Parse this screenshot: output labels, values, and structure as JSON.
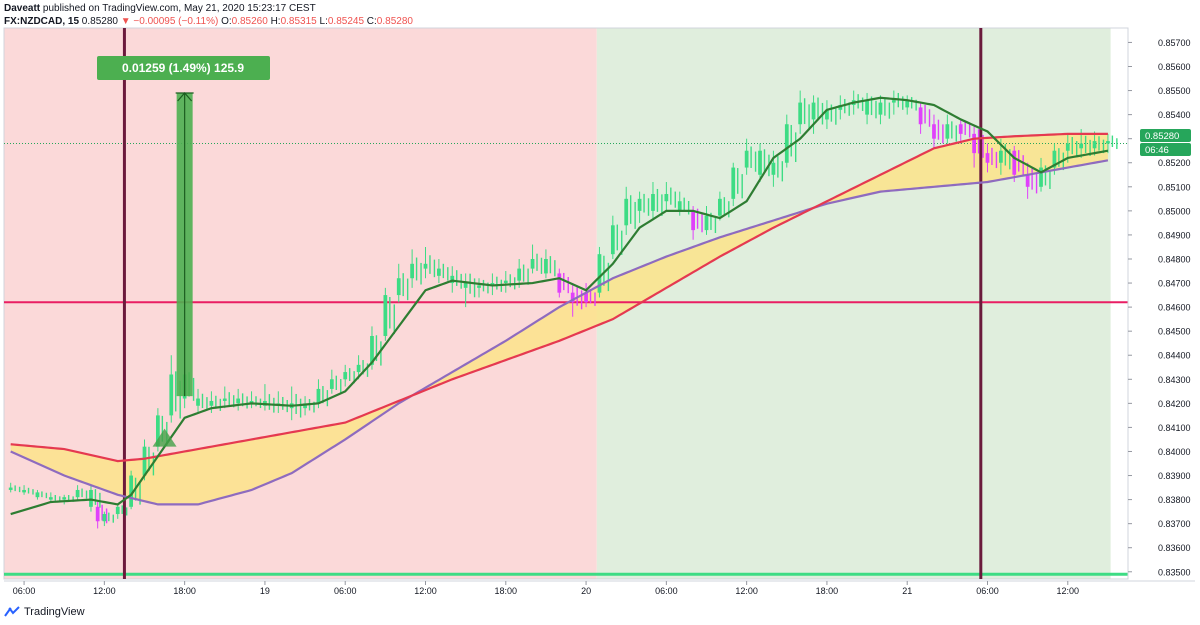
{
  "header": {
    "author": "Daveatt",
    "published": "published on TradingView.com, May 21, 2020 15:23:17 CEST",
    "symbol": "FX:NZDCAD, 15",
    "last": "0.85280",
    "change": "▼ −0.00095 (−0.11%)",
    "o_label": "O:",
    "o": "0.85260",
    "h_label": "H:",
    "h": "0.85315",
    "l_label": "L:",
    "l": "0.85245",
    "c_label": "C:",
    "c": "0.85280"
  },
  "measure_label": "0.01259 (1.49%) 125.9",
  "price_tags": {
    "current": "0.85280",
    "countdown": "06:46"
  },
  "footer": {
    "brand": "TradingView"
  },
  "colors": {
    "bg_bear": "#fbd9d9",
    "bg_bull": "#e0eedd",
    "fast_ma": "#2e7d32",
    "slow_ma_red": "#e53950",
    "slow_ma_purple": "#8e6bbf",
    "fill": "#fbe38a",
    "hline": "#e91e63",
    "vline": "#6b1a3c",
    "candle_up": "#3ddc84",
    "candle_pink": "#e040fb",
    "measure": "#4caf50"
  },
  "chart_data": {
    "type": "candlestick",
    "symbol": "FX:NZDCAD",
    "interval": "15",
    "y_ticks": [
      "0.85700",
      "0.85600",
      "0.85500",
      "0.85400",
      "0.85300",
      "0.85200",
      "0.85100",
      "0.85000",
      "0.84900",
      "0.84800",
      "0.84700",
      "0.84600",
      "0.84500",
      "0.84400",
      "0.84300",
      "0.84200",
      "0.84100",
      "0.84000",
      "0.83900",
      "0.83800",
      "0.83700",
      "0.83600",
      "0.83500"
    ],
    "ylim": [
      0.8347,
      0.8576
    ],
    "x_ticks": [
      {
        "t": 0,
        "label": "06:00"
      },
      {
        "t": 6,
        "label": "12:00"
      },
      {
        "t": 12,
        "label": "18:00"
      },
      {
        "t": 18,
        "label": "19"
      },
      {
        "t": 24,
        "label": "06:00"
      },
      {
        "t": 30,
        "label": "12:00"
      },
      {
        "t": 36,
        "label": "18:00"
      },
      {
        "t": 42,
        "label": "20"
      },
      {
        "t": 48,
        "label": "06:00"
      },
      {
        "t": 54,
        "label": "12:00"
      },
      {
        "t": 60,
        "label": "18:00"
      },
      {
        "t": 66,
        "label": "21"
      },
      {
        "t": 72,
        "label": "06:00"
      },
      {
        "t": 78,
        "label": "12:00"
      }
    ],
    "xlim": [
      -1.5,
      82.5
    ],
    "horizontal_line": 0.8462,
    "bottom_line": 0.8349,
    "vertical_lines": [
      7.5,
      71.5
    ],
    "background_zones": [
      {
        "from": -1.5,
        "to": 42.8,
        "kind": "bear"
      },
      {
        "from": 42.8,
        "to": 81.2,
        "kind": "bull"
      }
    ],
    "measure": {
      "t": 12,
      "from": 0.8423,
      "to": 0.8549,
      "change": "0.01259 (1.49%) 125.9"
    },
    "signal_triangle": {
      "t": 10.5,
      "price": 0.8407
    },
    "fast_ma": [
      [
        -1,
        0.8374
      ],
      [
        2,
        0.8379
      ],
      [
        5,
        0.838
      ],
      [
        7,
        0.8378
      ],
      [
        8,
        0.8382
      ],
      [
        10,
        0.8398
      ],
      [
        12,
        0.8414
      ],
      [
        14,
        0.8418
      ],
      [
        17,
        0.842
      ],
      [
        20,
        0.8419
      ],
      [
        22,
        0.842
      ],
      [
        24,
        0.8425
      ],
      [
        26,
        0.8437
      ],
      [
        28,
        0.8452
      ],
      [
        30,
        0.8467
      ],
      [
        32,
        0.8471
      ],
      [
        35,
        0.8469
      ],
      [
        38,
        0.847
      ],
      [
        40,
        0.8472
      ],
      [
        42,
        0.8467
      ],
      [
        44,
        0.8478
      ],
      [
        46,
        0.8493
      ],
      [
        48,
        0.85
      ],
      [
        50,
        0.85
      ],
      [
        52,
        0.8497
      ],
      [
        54,
        0.8504
      ],
      [
        56,
        0.8522
      ],
      [
        58,
        0.853
      ],
      [
        60,
        0.8542
      ],
      [
        62,
        0.8545
      ],
      [
        64,
        0.8547
      ],
      [
        66,
        0.8546
      ],
      [
        68,
        0.8544
      ],
      [
        70,
        0.8538
      ],
      [
        72,
        0.8533
      ],
      [
        74,
        0.8522
      ],
      [
        76,
        0.8516
      ],
      [
        78,
        0.8522
      ],
      [
        80,
        0.8524
      ],
      [
        81,
        0.8525
      ]
    ],
    "slow_ma_red": [
      [
        -1,
        0.8403
      ],
      [
        3,
        0.8401
      ],
      [
        7,
        0.8396
      ],
      [
        9,
        0.8397
      ],
      [
        12,
        0.84
      ],
      [
        16,
        0.8404
      ],
      [
        20,
        0.8408
      ],
      [
        24,
        0.8412
      ],
      [
        28,
        0.8421
      ],
      [
        32,
        0.843
      ],
      [
        36,
        0.8438
      ],
      [
        40,
        0.8446
      ],
      [
        44,
        0.8455
      ],
      [
        48,
        0.8468
      ],
      [
        52,
        0.8481
      ],
      [
        56,
        0.8493
      ],
      [
        60,
        0.8504
      ],
      [
        64,
        0.8515
      ],
      [
        68,
        0.8526
      ],
      [
        71,
        0.853
      ],
      [
        74,
        0.8531
      ],
      [
        78,
        0.8532
      ],
      [
        81,
        0.8532
      ]
    ],
    "slow_ma_purple": [
      [
        -1,
        0.84
      ],
      [
        3,
        0.839
      ],
      [
        7,
        0.8382
      ],
      [
        10,
        0.8378
      ],
      [
        13,
        0.8378
      ],
      [
        17,
        0.8384
      ],
      [
        20,
        0.8391
      ],
      [
        24,
        0.8405
      ],
      [
        28,
        0.842
      ],
      [
        32,
        0.8433
      ],
      [
        36,
        0.8446
      ],
      [
        40,
        0.846
      ],
      [
        44,
        0.8472
      ],
      [
        48,
        0.8481
      ],
      [
        52,
        0.8489
      ],
      [
        56,
        0.8496
      ],
      [
        60,
        0.8503
      ],
      [
        64,
        0.8508
      ],
      [
        68,
        0.851
      ],
      [
        72,
        0.8512
      ],
      [
        76,
        0.8516
      ],
      [
        79,
        0.8519
      ],
      [
        81,
        0.8521
      ]
    ],
    "candles": [
      [
        -1.0,
        0.8385,
        0.8387,
        0.8383,
        0.8384
      ],
      [
        0.0,
        0.8384,
        0.8386,
        0.8382,
        0.8383
      ],
      [
        1.0,
        0.8383,
        0.8384,
        0.838,
        0.8381
      ],
      [
        2.0,
        0.8381,
        0.8383,
        0.8379,
        0.838
      ],
      [
        3.0,
        0.838,
        0.8382,
        0.8378,
        0.8381
      ],
      [
        4.0,
        0.8381,
        0.8386,
        0.838,
        0.8384
      ],
      [
        5.0,
        0.8384,
        0.8386,
        0.8375,
        0.8377
      ],
      [
        5.5,
        0.8377,
        0.8379,
        0.8368,
        0.8371,
        "p"
      ],
      [
        6.0,
        0.8371,
        0.8375,
        0.8369,
        0.8374
      ],
      [
        7.0,
        0.8374,
        0.8378,
        0.8372,
        0.8377
      ],
      [
        8.0,
        0.8377,
        0.8392,
        0.8376,
        0.839
      ],
      [
        9.0,
        0.839,
        0.8405,
        0.8388,
        0.8402
      ],
      [
        10.0,
        0.8402,
        0.8418,
        0.84,
        0.8415
      ],
      [
        11.0,
        0.8415,
        0.844,
        0.8412,
        0.8432
      ],
      [
        12.0,
        0.8432,
        0.8435,
        0.8418,
        0.8422
      ],
      [
        13.0,
        0.8422,
        0.8426,
        0.8416,
        0.8419
      ],
      [
        14.0,
        0.8419,
        0.8425,
        0.8416,
        0.8421
      ],
      [
        15.0,
        0.8421,
        0.8427,
        0.8418,
        0.8422
      ],
      [
        16.0,
        0.8422,
        0.8426,
        0.8417,
        0.842
      ],
      [
        17.0,
        0.842,
        0.8425,
        0.8418,
        0.8421
      ],
      [
        18.0,
        0.8421,
        0.8428,
        0.8417,
        0.8419
      ],
      [
        19.0,
        0.8419,
        0.8425,
        0.8416,
        0.842
      ],
      [
        20.0,
        0.842,
        0.8427,
        0.8413,
        0.8418
      ],
      [
        21.0,
        0.8418,
        0.8423,
        0.8415,
        0.842
      ],
      [
        22.0,
        0.842,
        0.843,
        0.8418,
        0.8426
      ],
      [
        23.0,
        0.8426,
        0.8434,
        0.8424,
        0.843
      ],
      [
        24.0,
        0.843,
        0.8436,
        0.8427,
        0.8433
      ],
      [
        25.0,
        0.8433,
        0.844,
        0.843,
        0.8436
      ],
      [
        26.0,
        0.8436,
        0.8452,
        0.8434,
        0.8448
      ],
      [
        27.0,
        0.8448,
        0.8468,
        0.8446,
        0.8465
      ],
      [
        28.0,
        0.8465,
        0.8478,
        0.8462,
        0.8472
      ],
      [
        29.0,
        0.8472,
        0.8484,
        0.8468,
        0.8478
      ],
      [
        30.0,
        0.8478,
        0.8485,
        0.8472,
        0.8476
      ],
      [
        31.0,
        0.8476,
        0.848,
        0.847,
        0.8473
      ],
      [
        32.0,
        0.8473,
        0.8477,
        0.8466,
        0.847
      ],
      [
        33.0,
        0.847,
        0.8474,
        0.846,
        0.8468
      ],
      [
        34.0,
        0.8468,
        0.8472,
        0.8464,
        0.8469
      ],
      [
        35.0,
        0.8469,
        0.8474,
        0.8465,
        0.847
      ],
      [
        36.0,
        0.847,
        0.8475,
        0.8466,
        0.8471
      ],
      [
        37.0,
        0.8471,
        0.848,
        0.8468,
        0.8476
      ],
      [
        38.0,
        0.8476,
        0.8486,
        0.8474,
        0.848
      ],
      [
        39.0,
        0.848,
        0.8484,
        0.8472,
        0.8474
      ],
      [
        40.0,
        0.8474,
        0.8476,
        0.8464,
        0.8466,
        "p"
      ],
      [
        41.0,
        0.8466,
        0.847,
        0.8456,
        0.8462,
        "p"
      ],
      [
        42.0,
        0.8462,
        0.847,
        0.846,
        0.8466,
        "p"
      ],
      [
        43.0,
        0.8466,
        0.8485,
        0.8464,
        0.8482
      ],
      [
        44.0,
        0.8482,
        0.8498,
        0.848,
        0.8494
      ],
      [
        45.0,
        0.8494,
        0.851,
        0.849,
        0.8505
      ],
      [
        46.0,
        0.8505,
        0.8508,
        0.8495,
        0.85
      ],
      [
        47.0,
        0.85,
        0.8512,
        0.8496,
        0.8507
      ],
      [
        48.0,
        0.8507,
        0.8512,
        0.85,
        0.8504
      ],
      [
        49.0,
        0.8504,
        0.8508,
        0.8498,
        0.85
      ],
      [
        50.0,
        0.85,
        0.8502,
        0.8488,
        0.8492,
        "p"
      ],
      [
        51.0,
        0.8492,
        0.8502,
        0.849,
        0.8498
      ],
      [
        52.0,
        0.8498,
        0.8508,
        0.8496,
        0.8505
      ],
      [
        53.0,
        0.8505,
        0.852,
        0.8502,
        0.8518
      ],
      [
        54.0,
        0.8518,
        0.853,
        0.8515,
        0.8525
      ],
      [
        55.0,
        0.8525,
        0.8528,
        0.8512,
        0.8515
      ],
      [
        56.0,
        0.8515,
        0.8525,
        0.851,
        0.852
      ],
      [
        57.0,
        0.852,
        0.854,
        0.8518,
        0.8536
      ],
      [
        58.0,
        0.8536,
        0.855,
        0.8532,
        0.8545
      ],
      [
        59.0,
        0.8545,
        0.8548,
        0.8532,
        0.8538
      ],
      [
        60.0,
        0.8538,
        0.8546,
        0.8534,
        0.8542
      ],
      [
        61.0,
        0.8542,
        0.8548,
        0.8538,
        0.8544
      ],
      [
        62.0,
        0.8544,
        0.855,
        0.854,
        0.8546
      ],
      [
        63.0,
        0.8546,
        0.8549,
        0.8536,
        0.854
      ],
      [
        64.0,
        0.854,
        0.8548,
        0.8536,
        0.8545
      ],
      [
        65.0,
        0.8545,
        0.855,
        0.854,
        0.8546
      ],
      [
        66.0,
        0.8546,
        0.8548,
        0.854,
        0.8543
      ],
      [
        67.0,
        0.8543,
        0.8545,
        0.8532,
        0.8536,
        "p"
      ],
      [
        68.0,
        0.8536,
        0.854,
        0.8526,
        0.853,
        "p"
      ],
      [
        69.0,
        0.853,
        0.854,
        0.8528,
        0.8536
      ],
      [
        70.0,
        0.8536,
        0.8538,
        0.8528,
        0.8532,
        "p"
      ],
      [
        71.0,
        0.8532,
        0.8535,
        0.8518,
        0.8524,
        "p"
      ],
      [
        72.0,
        0.8524,
        0.8528,
        0.8516,
        0.852,
        "p"
      ],
      [
        73.0,
        0.852,
        0.853,
        0.8515,
        0.8525
      ],
      [
        74.0,
        0.8525,
        0.8527,
        0.8512,
        0.8515,
        "p"
      ],
      [
        75.0,
        0.8515,
        0.852,
        0.8505,
        0.851,
        "p"
      ],
      [
        76.0,
        0.851,
        0.8522,
        0.8508,
        0.8518
      ],
      [
        77.0,
        0.8518,
        0.8528,
        0.8515,
        0.8525
      ],
      [
        78.0,
        0.8525,
        0.8532,
        0.852,
        0.8528
      ],
      [
        79.0,
        0.8528,
        0.8534,
        0.8522,
        0.8526
      ],
      [
        80.0,
        0.8526,
        0.8533,
        0.8523,
        0.8529
      ],
      [
        81.0,
        0.8529,
        0.8532,
        0.8524,
        0.8528
      ]
    ]
  }
}
